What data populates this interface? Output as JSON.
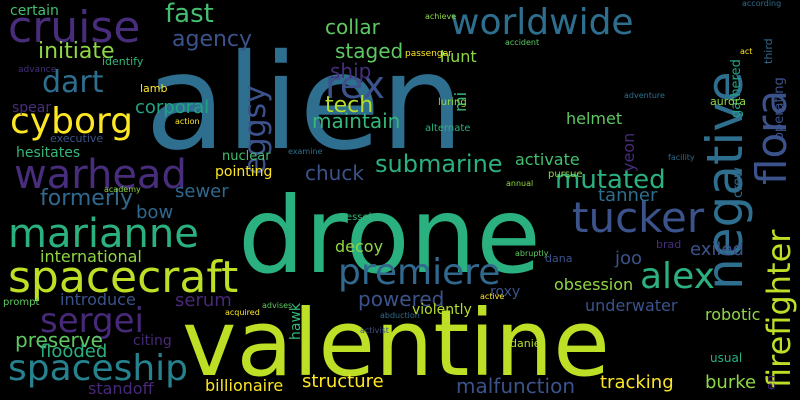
{
  "words": [
    {
      "text": "alien",
      "color": "#2e6e8e"
    },
    {
      "text": "drone",
      "color": "#2bb07f"
    },
    {
      "text": "valentine",
      "color": "#bddf26"
    },
    {
      "text": "worldwide",
      "color": "#2e6e8e"
    },
    {
      "text": "cruise",
      "color": "#472d7b"
    },
    {
      "text": "negative",
      "color": "#2e6e8e"
    },
    {
      "text": "flora",
      "color": "#3b528b"
    },
    {
      "text": "firefighter",
      "color": "#bddf26"
    },
    {
      "text": "rex",
      "color": "#3b528b"
    },
    {
      "text": "warhead",
      "color": "#472d7b"
    },
    {
      "text": "marianne",
      "color": "#2bb07f"
    },
    {
      "text": "cyborg",
      "color": "#fde725"
    },
    {
      "text": "spacecraft",
      "color": "#bddf26"
    },
    {
      "text": "premiere",
      "color": "#31688e"
    },
    {
      "text": "tucker",
      "color": "#3b528b"
    },
    {
      "text": "alex",
      "color": "#2bb07f"
    },
    {
      "text": "sergei",
      "color": "#482878"
    },
    {
      "text": "spaceship",
      "color": "#26828e"
    },
    {
      "text": "eggsy",
      "color": "#3b528b"
    },
    {
      "text": "fast",
      "color": "#44bf70"
    },
    {
      "text": "agency",
      "color": "#3b528b"
    },
    {
      "text": "initiate",
      "color": "#8fd744"
    },
    {
      "text": "dart",
      "color": "#2e6e8e"
    },
    {
      "text": "staged",
      "color": "#5ec962"
    },
    {
      "text": "collar",
      "color": "#5ec962"
    },
    {
      "text": "ship",
      "color": "#472d7b"
    },
    {
      "text": "hunt",
      "color": "#8fd744"
    },
    {
      "text": "tech",
      "color": "#b5de2b"
    },
    {
      "text": "maintain",
      "color": "#35b779"
    },
    {
      "text": "corporal",
      "color": "#20a486"
    },
    {
      "text": "submarine",
      "color": "#2bb07f"
    },
    {
      "text": "mutated",
      "color": "#2bb07f"
    },
    {
      "text": "chuck",
      "color": "#3b528b"
    },
    {
      "text": "sewer",
      "color": "#31688e"
    },
    {
      "text": "formerly",
      "color": "#31688e"
    },
    {
      "text": "international",
      "color": "#8fd744"
    },
    {
      "text": "bow",
      "color": "#31688e"
    },
    {
      "text": "decoy",
      "color": "#8fd744"
    },
    {
      "text": "serum",
      "color": "#482878"
    },
    {
      "text": "powered",
      "color": "#3b528b"
    },
    {
      "text": "introduce",
      "color": "#3b528b"
    },
    {
      "text": "preserve",
      "color": "#5ec962"
    },
    {
      "text": "flooded",
      "color": "#2bb07f"
    },
    {
      "text": "billionaire",
      "color": "#fde725"
    },
    {
      "text": "structure",
      "color": "#fde725"
    },
    {
      "text": "malfunction",
      "color": "#3b528b"
    },
    {
      "text": "tracking",
      "color": "#fde725"
    },
    {
      "text": "burke",
      "color": "#8fd744"
    },
    {
      "text": "underwater",
      "color": "#3b528b"
    },
    {
      "text": "obsession",
      "color": "#8fd744"
    },
    {
      "text": "robotic",
      "color": "#8fd744"
    },
    {
      "text": "exiled",
      "color": "#3b528b"
    },
    {
      "text": "joo",
      "color": "#3b528b"
    },
    {
      "text": "helmet",
      "color": "#5ec962"
    },
    {
      "text": "activate",
      "color": "#44bf70"
    },
    {
      "text": "tanner",
      "color": "#2e6e8e"
    },
    {
      "text": "certain",
      "color": "#44bf70"
    },
    {
      "text": "spear",
      "color": "#472d7b"
    },
    {
      "text": "hesitates",
      "color": "#35b779"
    },
    {
      "text": "standoff",
      "color": "#482878"
    },
    {
      "text": "nuclear",
      "color": "#44bf70"
    },
    {
      "text": "pointing",
      "color": "#fde725"
    },
    {
      "text": "citing",
      "color": "#482878"
    },
    {
      "text": "hawk",
      "color": "#35b779"
    },
    {
      "text": "violently",
      "color": "#b5de2b"
    },
    {
      "text": "roxy",
      "color": "#3b528b"
    },
    {
      "text": "yeon",
      "color": "#472d7b"
    },
    {
      "text": "crew",
      "color": "#31688e"
    },
    {
      "text": "gathered",
      "color": "#20a486"
    },
    {
      "text": "aurora",
      "color": "#8fd744"
    },
    {
      "text": "operating",
      "color": "#3b528b"
    },
    {
      "text": "usual",
      "color": "#2bb07f"
    },
    {
      "text": "en",
      "color": "#482878"
    },
    {
      "text": "daniel",
      "color": "#b5de2b"
    },
    {
      "text": "brad",
      "color": "#472d7b"
    },
    {
      "text": "dana",
      "color": "#3b528b"
    },
    {
      "text": "mi",
      "color": "#35b779"
    },
    {
      "text": "lamb",
      "color": "#fde725"
    },
    {
      "text": "identify",
      "color": "#35b779"
    },
    {
      "text": "third",
      "color": "#31688e"
    },
    {
      "text": "luring",
      "color": "#8fd744"
    },
    {
      "text": "executive",
      "color": "#3b528b"
    },
    {
      "text": "alternate",
      "color": "#2bb07f"
    },
    {
      "text": "prompt",
      "color": "#5ec962"
    },
    {
      "text": "vessel",
      "color": "#35b779"
    },
    {
      "text": "pursue",
      "color": "#8fd744"
    },
    {
      "text": "advance",
      "color": "#472d7b"
    },
    {
      "text": "examine",
      "color": "#2e6e8e"
    },
    {
      "text": "facility",
      "color": "#31688e"
    },
    {
      "text": "according",
      "color": "#2e6e8e"
    },
    {
      "text": "passenger",
      "color": "#fde725"
    },
    {
      "text": "action",
      "color": "#fde725"
    },
    {
      "text": "abduction",
      "color": "#2e6e8e"
    },
    {
      "text": "acquired",
      "color": "#fde725"
    },
    {
      "text": "advises",
      "color": "#5ec962"
    },
    {
      "text": "active",
      "color": "#fde725"
    },
    {
      "text": "activist",
      "color": "#3b528b"
    },
    {
      "text": "academy",
      "color": "#8fd744"
    },
    {
      "text": "accident",
      "color": "#5ec962"
    },
    {
      "text": "adventure",
      "color": "#2e6e8e"
    },
    {
      "text": "achieve",
      "color": "#8fd744"
    },
    {
      "text": "abruptly",
      "color": "#5ec962"
    },
    {
      "text": "annual",
      "color": "#8fd744"
    },
    {
      "text": "act",
      "color": "#fde725"
    }
  ]
}
